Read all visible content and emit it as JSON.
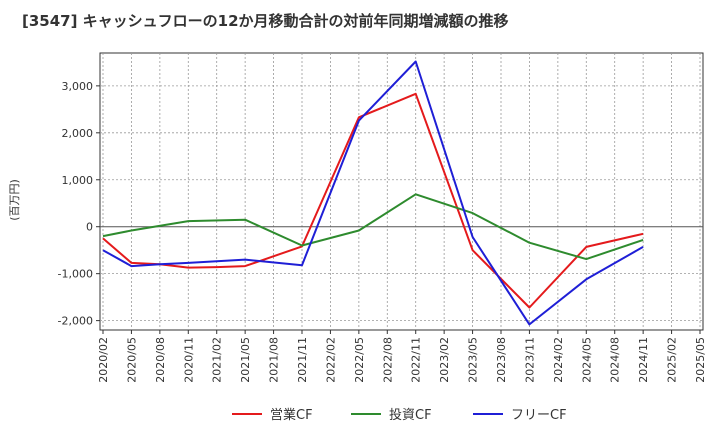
{
  "chart_data": {
    "type": "line",
    "title": "[3547]  キャッシュフローの12か月移動合計の対前年同期増減額の推移",
    "ylabel": "(百万円)",
    "xlabel": "",
    "x": [
      "2020/02",
      "2020/05",
      "2020/08",
      "2020/11",
      "2021/02",
      "2021/05",
      "2021/08",
      "2021/11",
      "2022/02",
      "2022/05",
      "2022/08",
      "2022/11",
      "2023/02",
      "2023/05",
      "2023/08",
      "2023/11",
      "2024/02",
      "2024/05",
      "2024/08",
      "2024/11",
      "2025/02",
      "2025/05"
    ],
    "ylim": [
      -2200,
      3700
    ],
    "yticks": [
      -2000,
      -1000,
      0,
      1000,
      2000,
      3000
    ],
    "ytick_labels": [
      "-2,000",
      "-1,000",
      "0",
      "1,000",
      "2,000",
      "3,000"
    ],
    "grid": true,
    "legend_position": "bottom",
    "series": [
      {
        "name": "営業CF",
        "color": "#e41a1c",
        "values": [
          -250,
          -770,
          -800,
          -870,
          -860,
          -840,
          null,
          -420,
          null,
          2330,
          null,
          2830,
          null,
          -500,
          null,
          -1720,
          null,
          -430,
          null,
          -150,
          null,
          null
        ]
      },
      {
        "name": "投資CF",
        "color": "#2e8b2e",
        "values": [
          -200,
          -80,
          null,
          120,
          null,
          150,
          null,
          -400,
          null,
          -80,
          null,
          690,
          null,
          290,
          null,
          -340,
          null,
          -690,
          null,
          -280,
          null,
          null
        ]
      },
      {
        "name": "フリーCF",
        "color": "#1f1fd6",
        "values": [
          -500,
          -840,
          -800,
          -770,
          null,
          -700,
          null,
          -820,
          null,
          2260,
          null,
          3520,
          null,
          -220,
          null,
          -2080,
          null,
          -1120,
          null,
          -430,
          null,
          null
        ]
      }
    ]
  }
}
